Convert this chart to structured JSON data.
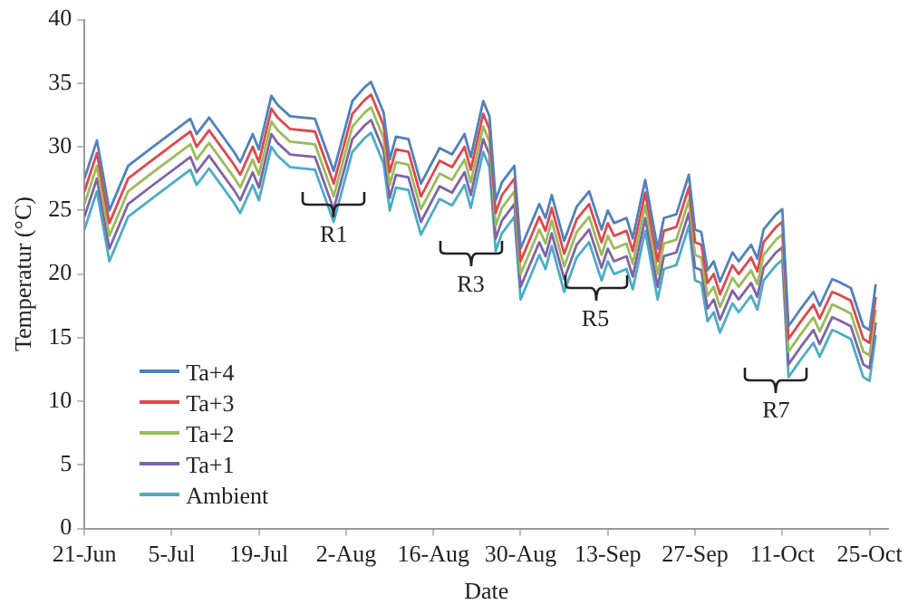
{
  "chart_data": {
    "type": "line",
    "xlabel": "Date",
    "ylabel": "Temperatur (°C)",
    "x": [
      "--06-21",
      "--06-23",
      "--06-25",
      "--06-28",
      "--07-02",
      "--07-08",
      "--07-09",
      "--07-11",
      "--07-15",
      "--07-16",
      "--07-18",
      "--07-19",
      "--07-21",
      "--07-22",
      "--07-24",
      "--07-28",
      "--07-31",
      "--08-03",
      "--08-05",
      "--08-06",
      "--08-08",
      "--08-09",
      "--08-10",
      "--08-12",
      "--08-14",
      "--08-17",
      "--08-19",
      "--08-21",
      "--08-22",
      "--08-24",
      "--08-25",
      "--08-26",
      "--08-27",
      "--08-29",
      "--08-30",
      "--09-02",
      "--09-03",
      "--09-04",
      "--09-06",
      "--09-08",
      "--09-10",
      "--09-12",
      "--09-13",
      "--09-14",
      "--09-16",
      "--09-17",
      "--09-19",
      "--09-21",
      "--09-22",
      "--09-24",
      "--09-26",
      "--09-27",
      "--09-28",
      "--09-29",
      "--09-30",
      "--10-01",
      "--10-03",
      "--10-04",
      "--10-06",
      "--10-07",
      "--10-08",
      "--10-10",
      "--10-11",
      "--10-12",
      "--10-14",
      "--10-16",
      "--10-17",
      "--10-19",
      "--10-20",
      "--10-22",
      "--10-24",
      "--10-25",
      "--10-26"
    ],
    "series": [
      {
        "name": "Ta+4",
        "color": "#4f81bd",
        "values": [
          27.5,
          30.5,
          25,
          28.5,
          30,
          32.2,
          31,
          32.3,
          29.6,
          28.8,
          31,
          29.8,
          34,
          33.3,
          32.4,
          32.2,
          28.1,
          33.6,
          34.7,
          35.1,
          32.7,
          29,
          30.8,
          30.6,
          27.1,
          29.9,
          29.4,
          31,
          29.2,
          33.6,
          32.4,
          25.8,
          27.2,
          28.5,
          22,
          25.5,
          24.4,
          26.2,
          22.6,
          25.3,
          26.5,
          23.5,
          25,
          24,
          24.4,
          22.8,
          27.4,
          22,
          24.4,
          24.7,
          27.8,
          23.5,
          23.3,
          20.3,
          21,
          19.4,
          21.7,
          21,
          22.3,
          21.2,
          23.5,
          24.7,
          25.1,
          15.9,
          17.3,
          18.6,
          17.5,
          19.6,
          19.4,
          18.9,
          15.9,
          15.6,
          19.2
        ]
      },
      {
        "name": "Ta+3",
        "color": "#e0474c",
        "values": [
          26.5,
          29.5,
          24,
          27.5,
          29,
          31.2,
          30,
          31.3,
          28.6,
          27.8,
          30,
          28.8,
          33,
          32.3,
          31.4,
          31.2,
          27.1,
          32.6,
          33.7,
          34.1,
          31.7,
          28,
          29.8,
          29.6,
          26.1,
          28.9,
          28.4,
          30,
          28.2,
          32.6,
          31.4,
          24.8,
          26.2,
          27.5,
          21,
          24.5,
          23.4,
          25.2,
          21.6,
          24.3,
          25.5,
          22.5,
          24,
          23,
          23.4,
          21.8,
          26.4,
          21,
          23.4,
          23.7,
          26.8,
          22.5,
          22.3,
          19.3,
          20,
          18.4,
          20.7,
          20,
          21.3,
          20.2,
          22.5,
          23.7,
          24.1,
          14.9,
          16.3,
          17.6,
          16.5,
          18.6,
          18.4,
          17.9,
          14.9,
          14.6,
          18.2
        ]
      },
      {
        "name": "Ta+2",
        "color": "#9bbb59",
        "values": [
          25.5,
          28.5,
          23,
          26.5,
          28,
          30.2,
          29,
          30.3,
          27.6,
          26.8,
          29,
          27.8,
          32,
          31.3,
          30.4,
          30.2,
          26.1,
          31.6,
          32.7,
          33.1,
          30.7,
          27,
          28.8,
          28.6,
          25.1,
          27.9,
          27.4,
          29,
          27.2,
          31.6,
          30.4,
          23.8,
          25.2,
          26.5,
          20,
          23.5,
          22.4,
          24.2,
          20.6,
          23.3,
          24.5,
          21.5,
          23,
          22,
          22.4,
          20.8,
          25.4,
          20,
          22.4,
          22.7,
          25.8,
          21.5,
          21.3,
          18.3,
          19,
          17.4,
          19.7,
          19,
          20.3,
          19.2,
          21.5,
          22.7,
          23.1,
          13.9,
          15.3,
          16.6,
          15.5,
          17.6,
          17.4,
          16.9,
          13.9,
          13.6,
          17.2
        ]
      },
      {
        "name": "Ta+1",
        "color": "#7f63a8",
        "values": [
          24.5,
          27.5,
          22,
          25.5,
          27,
          29.2,
          28,
          29.3,
          26.6,
          25.8,
          28,
          26.8,
          31,
          30.3,
          29.4,
          29.2,
          25.1,
          30.6,
          31.7,
          32.1,
          29.7,
          26,
          27.8,
          27.6,
          24.1,
          26.9,
          26.4,
          28,
          26.2,
          30.6,
          29.4,
          22.8,
          24.2,
          25.5,
          19,
          22.5,
          21.4,
          23.2,
          19.6,
          22.3,
          23.5,
          20.5,
          22,
          21,
          21.4,
          19.8,
          24.4,
          19,
          21.4,
          21.7,
          24.8,
          20.5,
          20.3,
          17.3,
          18,
          16.4,
          18.7,
          18,
          19.3,
          18.2,
          20.5,
          21.7,
          22.1,
          12.9,
          14.3,
          15.6,
          14.5,
          16.6,
          16.4,
          15.9,
          12.9,
          12.6,
          16.2
        ]
      },
      {
        "name": "Ambient",
        "color": "#4bacc6",
        "values": [
          23.5,
          26.5,
          21,
          24.5,
          26,
          28.2,
          27,
          28.3,
          25.6,
          24.8,
          27,
          25.8,
          30,
          29.3,
          28.4,
          28.2,
          24.1,
          29.6,
          30.7,
          31.1,
          28.7,
          25,
          26.8,
          26.6,
          23.1,
          25.9,
          25.4,
          27,
          25.2,
          29.6,
          28.4,
          21.8,
          23.2,
          24.5,
          18,
          21.5,
          20.4,
          22.2,
          18.6,
          21.3,
          22.5,
          19.5,
          21,
          20,
          20.4,
          18.8,
          23.4,
          18,
          20.4,
          20.7,
          23.8,
          19.5,
          19.3,
          16.3,
          17,
          15.4,
          17.7,
          17,
          18.3,
          17.2,
          19.5,
          20.7,
          21.1,
          11.9,
          13.3,
          14.6,
          13.5,
          15.6,
          15.4,
          14.9,
          11.9,
          11.6,
          15.2
        ]
      }
    ],
    "xlim": [
      "--06-21",
      "--10-28"
    ],
    "xticks": [
      {
        "value": "--06-21",
        "label": "21-Jun"
      },
      {
        "value": "--07-05",
        "label": "5-Jul"
      },
      {
        "value": "--07-19",
        "label": "19-Jul"
      },
      {
        "value": "--08-02",
        "label": "2-Aug"
      },
      {
        "value": "--08-16",
        "label": "16-Aug"
      },
      {
        "value": "--08-30",
        "label": "30-Aug"
      },
      {
        "value": "--09-13",
        "label": "13-Sep"
      },
      {
        "value": "--09-27",
        "label": "27-Sep"
      },
      {
        "value": "--10-11",
        "label": "11-Oct"
      },
      {
        "value": "--10-25",
        "label": "25-Oct"
      }
    ],
    "ylim": [
      0,
      40
    ],
    "yticks": [
      0,
      5,
      10,
      15,
      20,
      25,
      30,
      35,
      40
    ],
    "grid": false,
    "legend": "bottom left",
    "marker": "none",
    "line_style": "solid",
    "annotations": [
      {
        "text": "R1",
        "x": "--07-31",
        "y": 25.5
      },
      {
        "text": "R3",
        "x": "--08-22",
        "y": 21.6
      },
      {
        "text": "R5",
        "x": "--09-11",
        "y": 18.9
      },
      {
        "text": "R7",
        "x": "--10-10",
        "y": 11.7
      }
    ]
  }
}
